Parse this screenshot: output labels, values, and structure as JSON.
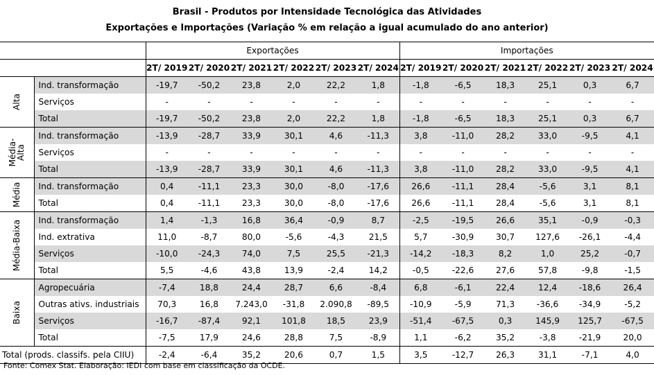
{
  "title_line1": "Brasil - Produtos por Intensidade Tecnológica das Atividades",
  "title_line2": "Exportações e Importações (Variação % em relação a igual acumulado do ano anterior)",
  "sections": [
    "Exportações",
    "Importações"
  ],
  "periods": [
    "2T/ 2019",
    "2T/ 2020",
    "2T/ 2021",
    "2T/ 2022",
    "2T/ 2023",
    "2T/ 2024"
  ],
  "groups": [
    {
      "label_lines": [
        "Alta"
      ],
      "rows": [
        {
          "label": "Ind. transformação",
          "exp": [
            "-19,7",
            "-50,2",
            "23,8",
            "2,0",
            "22,2",
            "1,8"
          ],
          "imp": [
            "-1,8",
            "-6,5",
            "18,3",
            "25,1",
            "0,3",
            "6,7"
          ]
        },
        {
          "label": "Serviços",
          "exp": [
            "-",
            "-",
            "-",
            "-",
            "-",
            "-"
          ],
          "imp": [
            "-",
            "-",
            "-",
            "-",
            "-",
            "-"
          ]
        },
        {
          "label": "Total",
          "exp": [
            "-19,7",
            "-50,2",
            "23,8",
            "2,0",
            "22,2",
            "1,8"
          ],
          "imp": [
            "-1,8",
            "-6,5",
            "18,3",
            "25,1",
            "0,3",
            "6,7"
          ]
        }
      ]
    },
    {
      "label_lines": [
        "Média-",
        "Alta"
      ],
      "rows": [
        {
          "label": "Ind. transformação",
          "exp": [
            "-13,9",
            "-28,7",
            "33,9",
            "30,1",
            "4,6",
            "-11,3"
          ],
          "imp": [
            "3,8",
            "-11,0",
            "28,2",
            "33,0",
            "-9,5",
            "4,1"
          ]
        },
        {
          "label": "Serviços",
          "exp": [
            "-",
            "-",
            "-",
            "-",
            "-",
            "-"
          ],
          "imp": [
            "-",
            "-",
            "-",
            "-",
            "-",
            "-"
          ]
        },
        {
          "label": "Total",
          "exp": [
            "-13,9",
            "-28,7",
            "33,9",
            "30,1",
            "4,6",
            "-11,3"
          ],
          "imp": [
            "3,8",
            "-11,0",
            "28,2",
            "33,0",
            "-9,5",
            "4,1"
          ]
        }
      ]
    },
    {
      "label_lines": [
        "Média"
      ],
      "rows": [
        {
          "label": "Ind. transformação",
          "exp": [
            "0,4",
            "-11,1",
            "23,3",
            "30,0",
            "-8,0",
            "-17,6"
          ],
          "imp": [
            "26,6",
            "-11,1",
            "28,4",
            "-5,6",
            "3,1",
            "8,1"
          ]
        },
        {
          "label": "Total",
          "exp": [
            "0,4",
            "-11,1",
            "23,3",
            "30,0",
            "-8,0",
            "-17,6"
          ],
          "imp": [
            "26,6",
            "-11,1",
            "28,4",
            "-5,6",
            "3,1",
            "8,1"
          ]
        }
      ]
    },
    {
      "label_lines": [
        "Média-Baixa"
      ],
      "rows": [
        {
          "label": "Ind. transformação",
          "exp": [
            "1,4",
            "-1,3",
            "16,8",
            "36,4",
            "-0,9",
            "8,7"
          ],
          "imp": [
            "-2,5",
            "-19,5",
            "26,6",
            "35,1",
            "-0,9",
            "-0,3"
          ]
        },
        {
          "label": "Ind. extrativa",
          "exp": [
            "11,0",
            "-8,7",
            "80,0",
            "-5,6",
            "-4,3",
            "21,5"
          ],
          "imp": [
            "5,7",
            "-30,9",
            "30,7",
            "127,6",
            "-26,1",
            "-4,4"
          ]
        },
        {
          "label": "Serviços",
          "exp": [
            "-10,0",
            "-24,3",
            "74,0",
            "7,5",
            "25,5",
            "-21,3"
          ],
          "imp": [
            "-14,2",
            "-18,3",
            "8,2",
            "1,0",
            "25,2",
            "-0,7"
          ]
        },
        {
          "label": "Total",
          "exp": [
            "5,5",
            "-4,6",
            "43,8",
            "13,9",
            "-2,4",
            "14,2"
          ],
          "imp": [
            "-0,5",
            "-22,6",
            "27,6",
            "57,8",
            "-9,8",
            "-1,5"
          ]
        }
      ]
    },
    {
      "label_lines": [
        "Baixa"
      ],
      "rows": [
        {
          "label": "Agropecuária",
          "exp": [
            "-7,4",
            "18,8",
            "24,4",
            "28,7",
            "6,6",
            "-8,4"
          ],
          "imp": [
            "6,8",
            "-6,1",
            "22,4",
            "12,4",
            "-18,6",
            "26,4"
          ]
        },
        {
          "label": "Outras ativs. industriais",
          "exp": [
            "70,3",
            "16,8",
            "7.243,0",
            "-31,8",
            "2.090,8",
            "-89,5"
          ],
          "imp": [
            "-10,9",
            "-5,9",
            "71,3",
            "-36,6",
            "-34,9",
            "-5,2"
          ]
        },
        {
          "label": "Serviços",
          "exp": [
            "-16,7",
            "-87,4",
            "92,1",
            "101,8",
            "18,5",
            "23,9"
          ],
          "imp": [
            "-51,4",
            "-67,5",
            "0,3",
            "145,9",
            "125,7",
            "-67,5"
          ]
        },
        {
          "label": "Total",
          "exp": [
            "-7,5",
            "17,9",
            "24,6",
            "28,8",
            "7,5",
            "-8,9"
          ],
          "imp": [
            "1,1",
            "-6,2",
            "35,2",
            "-3,8",
            "-21,9",
            "20,0"
          ]
        }
      ]
    }
  ],
  "grand_total": {
    "label": "Total (prods. classifs. pela CIIU)",
    "exp": [
      "-2,4",
      "-6,4",
      "35,2",
      "20,6",
      "0,7",
      "1,5"
    ],
    "imp": [
      "3,5",
      "-12,7",
      "26,3",
      "31,1",
      "-7,1",
      "4,0"
    ]
  },
  "source": "Fonte: Comex Stat. Elaboração: IEDI com base em classificação da OCDE."
}
